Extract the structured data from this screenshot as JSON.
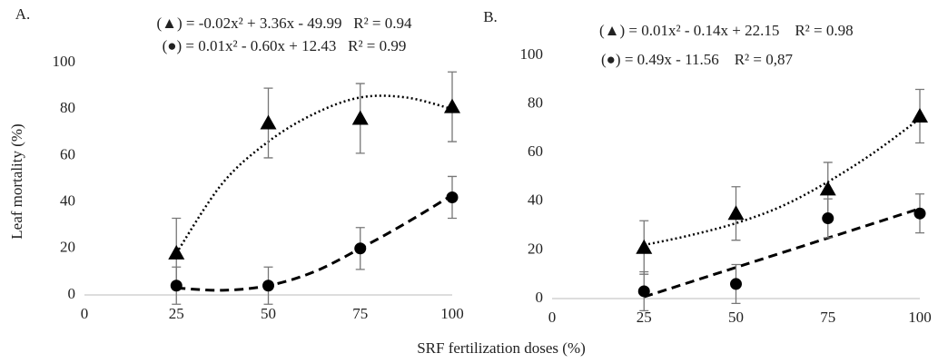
{
  "figure": {
    "ylabel": "Leaf mortality (%)",
    "xlabel": "SRF fertilization doses (%)"
  },
  "chart_data": [
    {
      "type": "scatter",
      "panel": "A.",
      "equations": [
        "(▲) = -0.02x² + 3.36x - 49.99   R² = 0.94",
        "(●) = 0.01x² - 0.60x + 12.43   R² = 0.99"
      ],
      "xlim": [
        0,
        100
      ],
      "xticks": [
        0,
        25,
        50,
        75,
        100
      ],
      "ylim": [
        0,
        100
      ],
      "yticks": [
        0,
        20,
        40,
        60,
        80,
        100
      ],
      "series": [
        {
          "marker": "triangle",
          "color": "#000000",
          "x": [
            25,
            50,
            75,
            100
          ],
          "values": [
            18,
            74,
            76,
            81
          ],
          "errors": [
            15,
            15,
            15,
            15
          ],
          "trend": {
            "style": "dotted",
            "x": [
              25,
              37.5,
              50,
              62.5,
              75,
              87.5,
              100
            ],
            "values": [
              18,
              48,
              66,
              78,
              85,
              85,
              80
            ]
          }
        },
        {
          "marker": "circle",
          "color": "#000000",
          "x": [
            25,
            50,
            75,
            100
          ],
          "values": [
            4,
            4,
            20,
            42
          ],
          "errors": [
            8,
            8,
            9,
            9
          ],
          "trend": {
            "style": "dashed",
            "x": [
              25,
              37.5,
              50,
              62.5,
              75,
              87.5,
              100
            ],
            "values": [
              3,
              2,
              4,
              10,
              20,
              31,
              43
            ]
          }
        }
      ]
    },
    {
      "type": "scatter",
      "panel": "B.",
      "equations": [
        "(▲) = 0.01x² - 0.14x + 22.15    R² = 0.98",
        "(●) = 0.49x - 11.56    R² = 0,87"
      ],
      "xlim": [
        0,
        100
      ],
      "xticks": [
        0,
        25,
        50,
        75,
        100
      ],
      "ylim": [
        0,
        100
      ],
      "yticks": [
        0,
        20,
        40,
        60,
        80,
        100
      ],
      "series": [
        {
          "marker": "triangle",
          "color": "#000000",
          "x": [
            25,
            50,
            75,
            100
          ],
          "values": [
            21,
            35,
            45,
            75
          ],
          "errors": [
            11,
            11,
            11,
            11
          ],
          "trend": {
            "style": "dotted",
            "x": [
              25,
              37.5,
              50,
              62.5,
              75,
              87.5,
              100
            ],
            "values": [
              22,
              26,
              31,
              38,
              48,
              60,
              74
            ]
          }
        },
        {
          "marker": "circle",
          "color": "#000000",
          "x": [
            25,
            50,
            75,
            100
          ],
          "values": [
            3,
            6,
            33,
            35
          ],
          "errors": [
            8,
            8,
            8,
            8
          ],
          "trend": {
            "style": "dashed",
            "x": [
              25,
              100
            ],
            "values": [
              0.7,
              37
            ]
          }
        }
      ]
    }
  ]
}
